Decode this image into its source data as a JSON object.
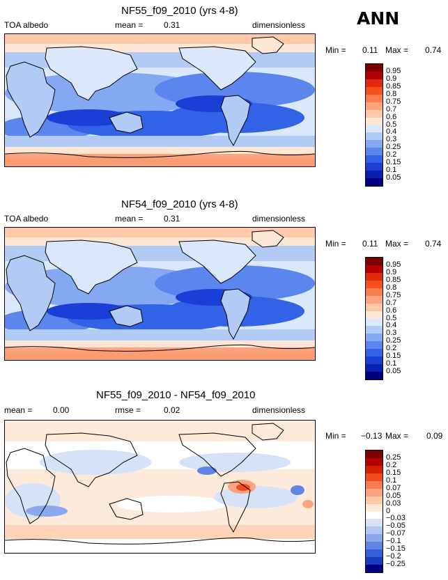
{
  "season": "ANN",
  "panels": [
    {
      "title": "NF55_f09_2010 (yrs 4-8)",
      "left_label": "TOA albedo",
      "mean_label": "mean =",
      "mean_value": "0.31",
      "units": "dimensionless",
      "min_label": "Min =",
      "min_value": "0.11",
      "max_label": "Max =",
      "max_value": "0.74",
      "colorbar": {
        "labels": [
          "0.95",
          "0.9",
          "0.85",
          "0.8",
          "0.75",
          "0.7",
          "0.6",
          "0.5",
          "0.4",
          "0.3",
          "0.25",
          "0.2",
          "0.15",
          "0.1",
          "0.05"
        ],
        "colors": [
          "#7f0000",
          "#b30000",
          "#e02a0b",
          "#f5501e",
          "#fa7b4d",
          "#fca47e",
          "#fdc9a8",
          "#fde6d4",
          "#dbe8fb",
          "#b2cbf6",
          "#84a9f2",
          "#5a86ee",
          "#3262e6",
          "#1a3fd6",
          "#0a1fb0",
          "#000080"
        ]
      }
    },
    {
      "title": "NF54_f09_2010 (yrs 4-8)",
      "left_label": "TOA albedo",
      "mean_label": "mean =",
      "mean_value": "0.31",
      "units": "dimensionless",
      "min_label": "Min =",
      "min_value": "0.11",
      "max_label": "Max =",
      "max_value": "0.74",
      "colorbar": {
        "labels": [
          "0.95",
          "0.9",
          "0.85",
          "0.8",
          "0.75",
          "0.7",
          "0.6",
          "0.5",
          "0.4",
          "0.3",
          "0.25",
          "0.2",
          "0.15",
          "0.1",
          "0.05"
        ],
        "colors": [
          "#7f0000",
          "#b30000",
          "#e02a0b",
          "#f5501e",
          "#fa7b4d",
          "#fca47e",
          "#fdc9a8",
          "#fde6d4",
          "#dbe8fb",
          "#b2cbf6",
          "#84a9f2",
          "#5a86ee",
          "#3262e6",
          "#1a3fd6",
          "#0a1fb0",
          "#000080"
        ]
      }
    },
    {
      "title": "NF55_f09_2010 - NF54_f09_2010",
      "left_label": "mean =",
      "left_value": "0.00",
      "mean_label": "rmse =",
      "mean_value": "0.02",
      "units": "dimensionless",
      "min_label": "Min =",
      "min_value": "−0.13",
      "max_label": "Max =",
      "max_value": "0.09",
      "colorbar": {
        "labels": [
          "0.25",
          "0.2",
          "0.15",
          "0.1",
          "0.07",
          "0.05",
          "0.03",
          "0",
          "−0.03",
          "−0.05",
          "−0.07",
          "−0.1",
          "−0.15",
          "−0.2",
          "−0.25"
        ],
        "colors": [
          "#7f0000",
          "#b30000",
          "#d81e05",
          "#f04a1e",
          "#f87a4e",
          "#fca47e",
          "#fdc9a8",
          "#fdeadb",
          "#ffffff",
          "#d6e2f8",
          "#b2c8f3",
          "#8aa8ee",
          "#5f86e6",
          "#3560dc",
          "#1a3bc4",
          "#000080"
        ]
      }
    }
  ]
}
